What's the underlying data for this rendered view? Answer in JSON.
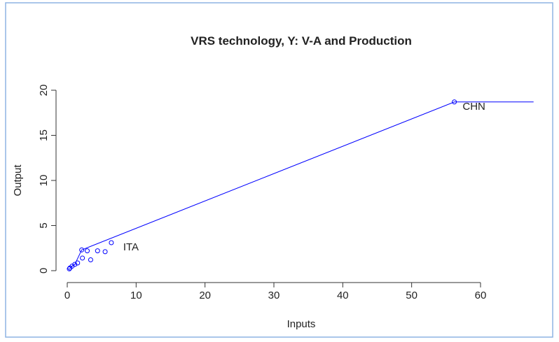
{
  "chart_data": {
    "type": "scatter",
    "title": "VRS technology, Y: V-A and Production",
    "x_label": "Inputs",
    "y_label": "Output",
    "xlim": [
      0,
      68
    ],
    "ylim": [
      0,
      20
    ],
    "xticks": [
      0,
      10,
      20,
      30,
      40,
      50,
      60
    ],
    "yticks": [
      0,
      5,
      10,
      15,
      20
    ],
    "point_color": "#0000ff",
    "frontier_color": "#0000ff",
    "points": {
      "x": [
        0.3,
        0.4,
        0.7,
        1.1,
        1.5,
        2.1,
        2.2,
        2.9,
        3.4,
        4.4,
        5.5,
        6.4,
        56.2
      ],
      "y": [
        0.2,
        0.3,
        0.5,
        0.7,
        0.85,
        2.3,
        1.4,
        2.2,
        1.2,
        2.2,
        2.1,
        3.1,
        18.7
      ],
      "labels": [
        null,
        null,
        null,
        null,
        null,
        null,
        null,
        null,
        null,
        null,
        null,
        "ITA",
        "CHN"
      ]
    },
    "frontier": {
      "x": [
        0.3,
        0.7,
        1.1,
        2.1,
        56.2,
        67.7
      ],
      "y": [
        0.2,
        0.5,
        0.7,
        2.3,
        18.7,
        18.7
      ]
    }
  }
}
